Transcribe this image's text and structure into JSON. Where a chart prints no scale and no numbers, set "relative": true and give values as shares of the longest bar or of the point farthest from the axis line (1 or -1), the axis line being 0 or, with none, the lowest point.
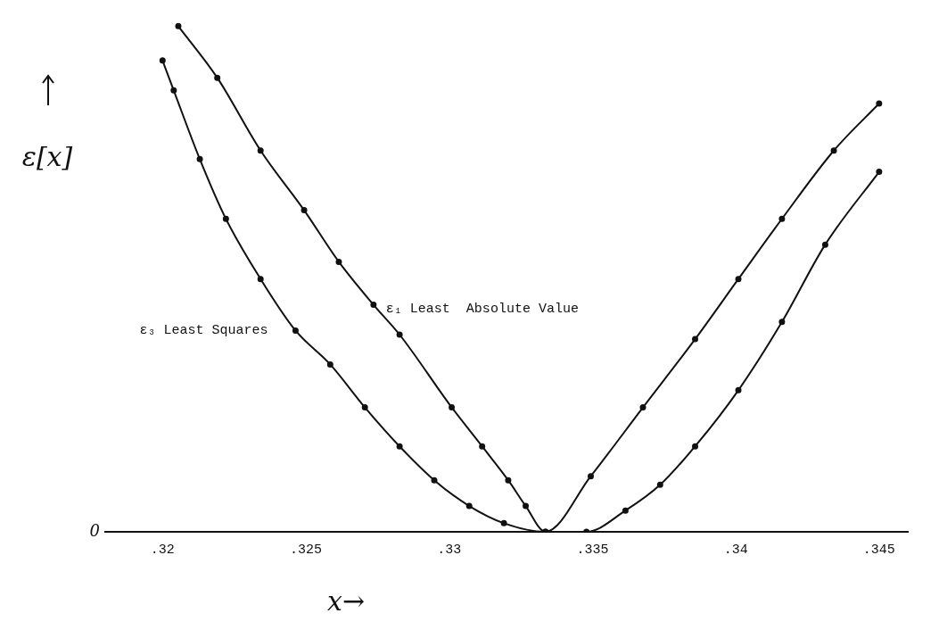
{
  "chart_data": {
    "type": "line",
    "relative": true,
    "xlabel": "x→",
    "ylabel": "ε[x]",
    "annotations": [
      "0"
    ],
    "xlim": [
      0.318,
      0.346
    ],
    "xticks": [
      {
        "value": 0.32,
        "label": ".32"
      },
      {
        "value": 0.325,
        "label": ".325"
      },
      {
        "value": 0.33,
        "label": ".33"
      },
      {
        "value": 0.335,
        "label": ".335"
      },
      {
        "value": 0.34,
        "label": ".34"
      },
      {
        "value": 0.345,
        "label": ".345"
      }
    ],
    "grid": false,
    "legend": false,
    "marker": "circle",
    "line_style": "solid",
    "series": [
      {
        "name": "ε₁ Least  Absolute Value",
        "color": "#111111",
        "x": [
          0.32055,
          0.32191,
          0.32342,
          0.32494,
          0.32615,
          0.32736,
          0.32827,
          0.33009,
          0.33115,
          0.33206,
          0.33267,
          0.33336,
          0.33494,
          0.33676,
          0.33858,
          0.34009,
          0.34161,
          0.34342,
          0.345
        ],
        "values": [
          1,
          0.898,
          0.754,
          0.636,
          0.534,
          0.449,
          0.39,
          0.246,
          0.169,
          0.102,
          0.051,
          0,
          0.11,
          0.246,
          0.381,
          0.5,
          0.619,
          0.754,
          0.847
        ]
      },
      {
        "name": "ε₃ Least Squares",
        "color": "#111111",
        "x": [
          0.32,
          0.32039,
          0.3213,
          0.32221,
          0.32342,
          0.32464,
          0.32585,
          0.32706,
          0.32827,
          0.32948,
          0.3307,
          0.33191,
          0.33336,
          0.33479,
          0.33615,
          0.33736,
          0.33858,
          0.34009,
          0.34161,
          0.34312,
          0.345
        ],
        "values": [
          0.932,
          0.873,
          0.737,
          0.619,
          0.5,
          0.398,
          0.331,
          0.246,
          0.169,
          0.102,
          0.051,
          0.017,
          0,
          0,
          0.042,
          0.093,
          0.169,
          0.28,
          0.415,
          0.568,
          0.712
        ]
      }
    ]
  }
}
